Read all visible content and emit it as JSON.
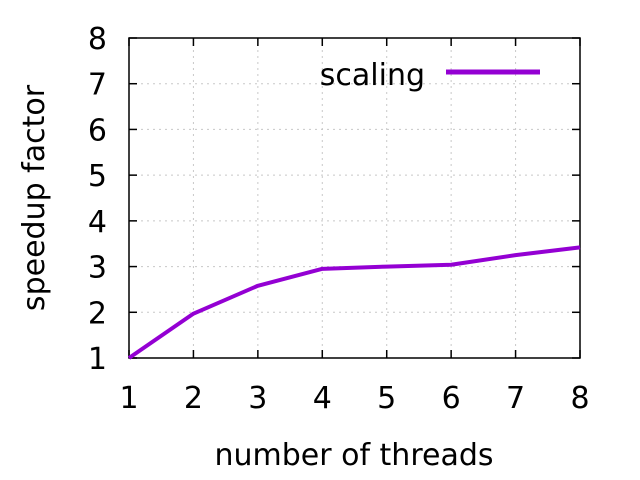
{
  "chart_data": {
    "type": "line",
    "xlabel": "number of threads",
    "ylabel": "speedup factor",
    "xlim": [
      1,
      8
    ],
    "ylim": [
      1,
      8
    ],
    "x_ticks": [
      1,
      2,
      3,
      4,
      5,
      6,
      7,
      8
    ],
    "y_ticks": [
      1,
      2,
      3,
      4,
      5,
      6,
      7,
      8
    ],
    "grid": true,
    "legend_position": "top-right",
    "series": [
      {
        "name": "scaling",
        "color": "#9400d3",
        "x": [
          1,
          2,
          3,
          4,
          5,
          6,
          7,
          8
        ],
        "y": [
          1.0,
          1.97,
          2.58,
          2.95,
          3.0,
          3.04,
          3.25,
          3.42
        ]
      }
    ]
  }
}
